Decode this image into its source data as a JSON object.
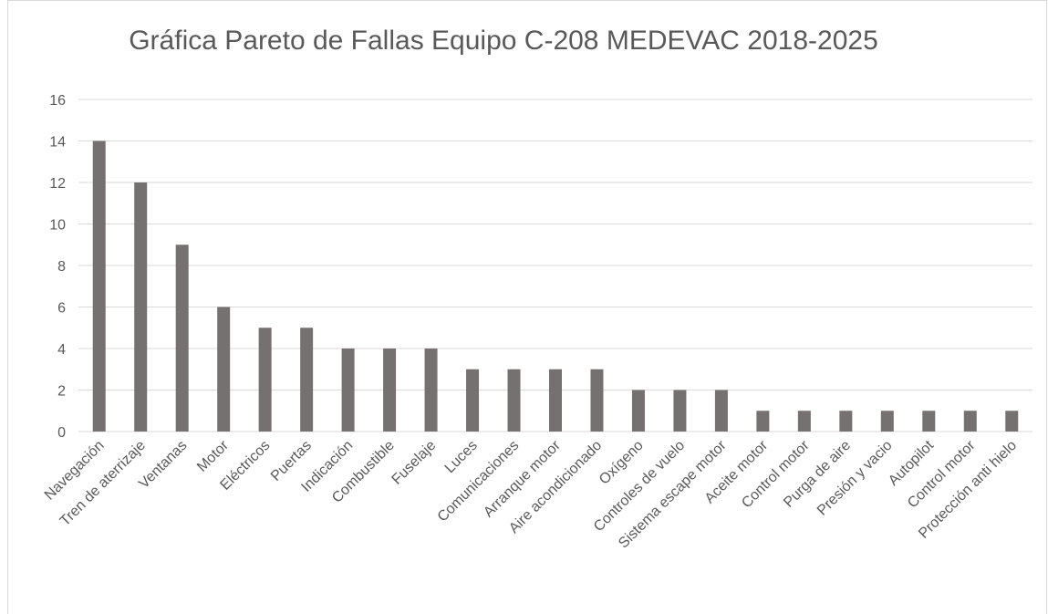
{
  "chart_data": {
    "type": "bar",
    "title": "Gráfica Pareto de Fallas Equipo C-208 MEDEVAC 2018-2025",
    "categories": [
      "Navegación",
      "Tren de aterrizaje",
      "Ventanas",
      "Motor",
      "Eléctricos",
      "Puertas",
      "Indicación",
      "Combustible",
      "Fuselaje",
      "Luces",
      "Comunicaciones",
      "Arranque motor",
      "Aire acondicionado",
      "Oxígeno",
      "Controles de vuelo",
      "Sistema escape motor",
      "Aceite motor",
      "Control motor",
      "Purga de aire",
      "Presión y vacio",
      "Autopilot",
      "Control motor",
      "Protección anti hielo"
    ],
    "values": [
      14,
      12,
      9,
      6,
      5,
      5,
      4,
      4,
      4,
      3,
      3,
      3,
      3,
      2,
      2,
      2,
      1,
      1,
      1,
      1,
      1,
      1,
      1
    ],
    "color": "#767171",
    "ylim": [
      0,
      16
    ],
    "yticks": [
      0,
      2,
      4,
      6,
      8,
      10,
      12,
      14,
      16
    ],
    "grid": true
  }
}
